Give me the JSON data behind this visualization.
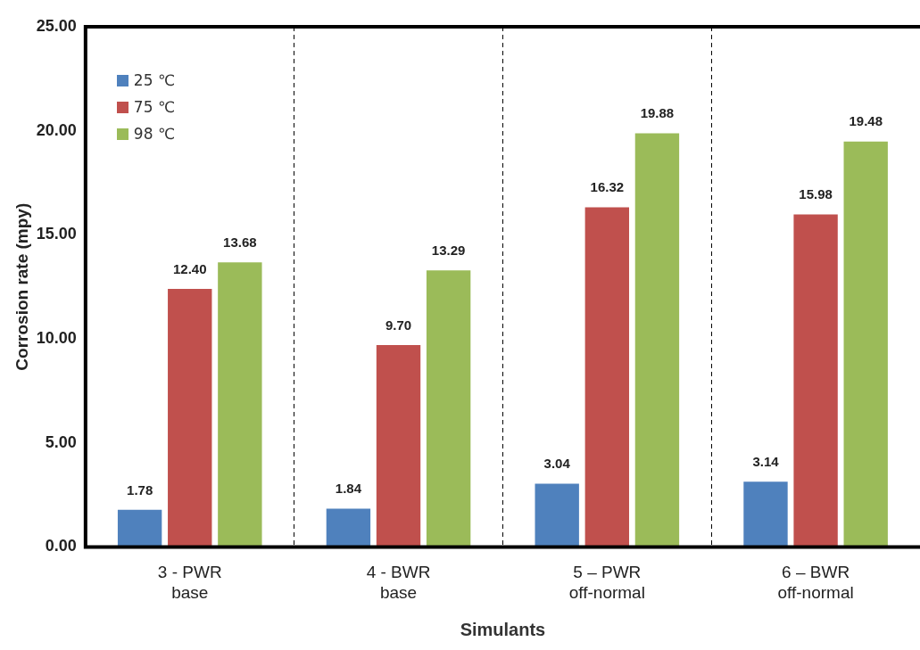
{
  "chart_data": {
    "type": "bar",
    "xlabel": "Simulants",
    "ylabel": "Corrosion rate (mpy)",
    "categories": [
      "3 - PWR\nbase",
      "4 - BWR\nbase",
      "5 – PWR\noff-normal",
      "6 – BWR\noff-normal"
    ],
    "series": [
      {
        "name": "25 ℃",
        "color": "#4f81bd",
        "values": [
          1.78,
          1.84,
          3.04,
          3.14
        ],
        "value_labels": [
          "1.78",
          "1.84",
          "3.04",
          "3.14"
        ]
      },
      {
        "name": "75 ℃",
        "color": "#c0504d",
        "values": [
          12.4,
          9.7,
          16.32,
          15.98
        ],
        "value_labels": [
          "12.40",
          "9.70",
          "16.32",
          "15.98"
        ]
      },
      {
        "name": "98 ℃",
        "color": "#9bbb59",
        "values": [
          13.68,
          13.29,
          19.88,
          19.48
        ],
        "value_labels": [
          "13.68",
          "13.29",
          "19.88",
          "19.48"
        ]
      }
    ],
    "ylim": [
      0,
      25
    ],
    "yticks": [
      {
        "value": 0,
        "label": "0.00"
      },
      {
        "value": 5,
        "label": "5.00"
      },
      {
        "value": 10,
        "label": "10.00"
      },
      {
        "value": 15,
        "label": "15.00"
      },
      {
        "value": 20,
        "label": "20.00"
      },
      {
        "value": 25,
        "label": "25.00"
      }
    ],
    "grid": "x",
    "legend": "top left"
  }
}
